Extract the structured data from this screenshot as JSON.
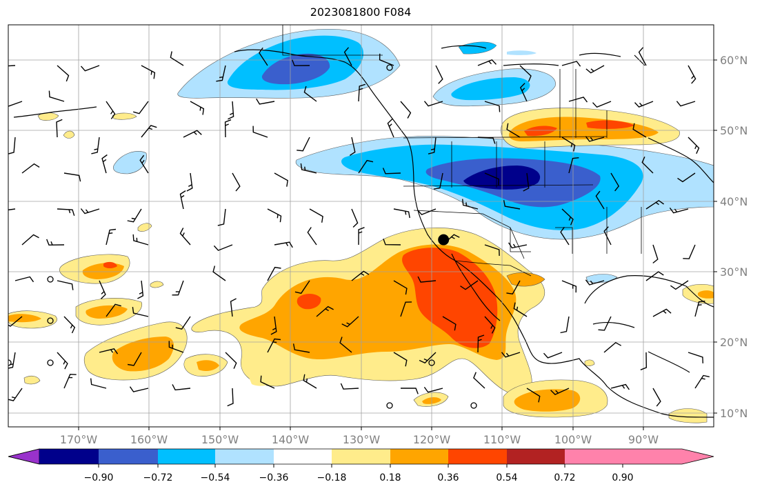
{
  "title": "2023081800 F084",
  "map": {
    "lon_ticks": [
      "170°W",
      "160°W",
      "150°W",
      "140°W",
      "130°W",
      "120°W",
      "110°W",
      "100°W",
      "90°W"
    ],
    "lat_ticks": [
      "60°N",
      "50°N",
      "40°N",
      "30°N",
      "20°N",
      "10°N"
    ],
    "lon_range": [
      -180,
      -80
    ],
    "lat_range": [
      7,
      65
    ]
  },
  "colorbar": {
    "ticks": [
      "−0.90",
      "−0.72",
      "−0.54",
      "−0.36",
      "−0.18",
      "0.18",
      "0.36",
      "0.54",
      "0.72",
      "0.90"
    ],
    "colors": [
      "#9932cc",
      "#00008b",
      "#3a5fcd",
      "#00bfff",
      "#b0e2ff",
      "#ffffff",
      "#ffec8b",
      "#ffa500",
      "#ff4500",
      "#b22222",
      "#ff82ab"
    ]
  },
  "fill_colors": {
    "neg_light": "#b0e2ff",
    "neg_mid": "#00bfff",
    "neg_strong": "#3a5fcd",
    "neg_max": "#00008b",
    "pos_light": "#ffec8b",
    "pos_mid": "#ffa500",
    "pos_strong": "#ff4500"
  },
  "marker": {
    "label": "",
    "lon": -118.3,
    "lat": 34.0
  }
}
